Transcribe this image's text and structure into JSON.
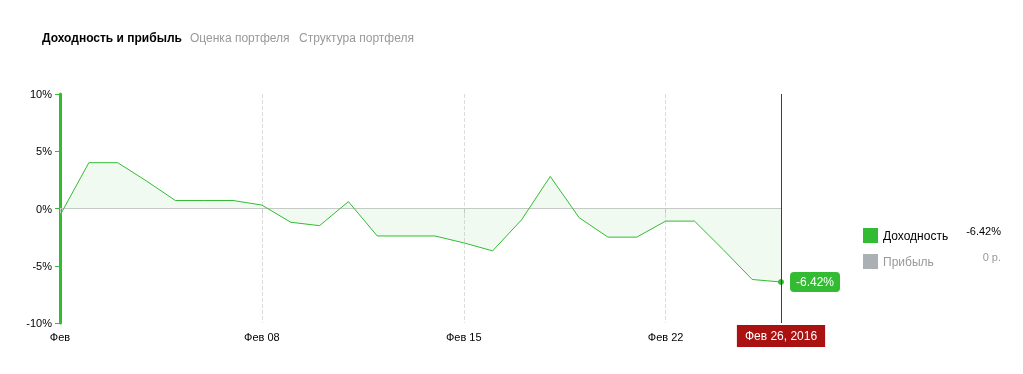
{
  "chart_data": {
    "type": "area",
    "x": [
      "2016-02-01",
      "2016-02-02",
      "2016-02-03",
      "2016-02-04",
      "2016-02-05",
      "2016-02-06",
      "2016-02-07",
      "2016-02-08",
      "2016-02-09",
      "2016-02-10",
      "2016-02-11",
      "2016-02-12",
      "2016-02-13",
      "2016-02-14",
      "2016-02-15",
      "2016-02-16",
      "2016-02-17",
      "2016-02-18",
      "2016-02-19",
      "2016-02-20",
      "2016-02-21",
      "2016-02-22",
      "2016-02-23",
      "2016-02-24",
      "2016-02-25",
      "2016-02-26"
    ],
    "series": [
      {
        "name": "Доходность",
        "color": "#33bb33",
        "values": [
          -0.6,
          4.0,
          4.0,
          2.4,
          0.7,
          0.7,
          0.7,
          0.3,
          -1.2,
          -1.5,
          0.6,
          -2.4,
          -2.4,
          -2.4,
          -3.0,
          -3.7,
          -1.0,
          2.8,
          -0.8,
          -2.5,
          -2.5,
          -1.1,
          -1.1,
          -3.6,
          -6.2,
          -6.42
        ],
        "value_labels": [
          null,
          null,
          null,
          null,
          null,
          null,
          null,
          null,
          null,
          null,
          null,
          null,
          null,
          null,
          null,
          null,
          null,
          null,
          null,
          null,
          null,
          null,
          null,
          null,
          null,
          "-6.42%"
        ]
      },
      {
        "name": "Прибыль",
        "color": "#aab0b3",
        "values": [
          null,
          null,
          null,
          null,
          null,
          null,
          null,
          null,
          null,
          null,
          null,
          null,
          null,
          null,
          null,
          null,
          null,
          null,
          null,
          null,
          null,
          null,
          null,
          null,
          null,
          null
        ]
      }
    ],
    "xlim": [
      "2016-02-01",
      "2016-02-26"
    ],
    "xticks": [
      {
        "value": "2016-02-01",
        "label": "Фев"
      },
      {
        "value": "2016-02-08",
        "label": "Фев 08"
      },
      {
        "value": "2016-02-15",
        "label": "Фев 15"
      },
      {
        "value": "2016-02-22",
        "label": "Фев 22"
      }
    ],
    "ylim": [
      -10,
      10
    ],
    "yticks": [
      {
        "value": -10,
        "label": "-10%"
      },
      {
        "value": -5,
        "label": "-5%"
      },
      {
        "value": 0,
        "label": "0%"
      },
      {
        "value": 5,
        "label": "5%"
      },
      {
        "value": 10,
        "label": "10%"
      }
    ],
    "grid": "x",
    "legend": "right",
    "marker": "none",
    "ref_lines": [
      {
        "axis": "x",
        "value": "2016-02-26",
        "label": "Фев 26, 2016",
        "color": "#aa1111"
      }
    ],
    "annotations": [
      "Доходность и прибыль",
      "Оценка портфеля",
      "Структура портфеля",
      "-6.42%",
      "0 р."
    ]
  }
}
